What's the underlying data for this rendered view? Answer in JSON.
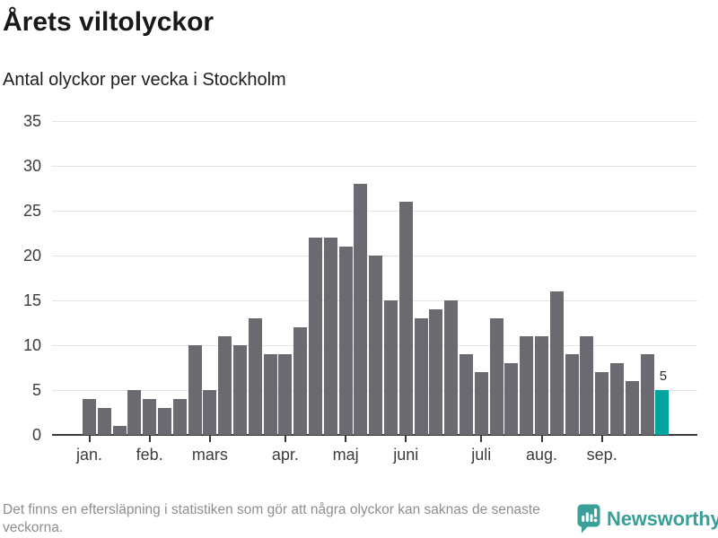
{
  "header": {
    "title": "Årets viltolyckor",
    "subtitle": "Antal olyckor per vecka i Stockholm"
  },
  "chart_data": {
    "type": "bar",
    "title": "Årets viltolyckor",
    "subtitle": "Antal olyckor per vecka i Stockholm",
    "ylabel": "",
    "xlabel": "",
    "values": [
      4,
      3,
      1,
      5,
      4,
      3,
      4,
      10,
      5,
      11,
      10,
      13,
      9,
      9,
      12,
      22,
      22,
      21,
      28,
      20,
      15,
      26,
      13,
      14,
      15,
      9,
      7,
      13,
      8,
      11,
      11,
      16,
      9,
      11,
      7,
      8,
      6,
      9,
      5
    ],
    "highlight_index": 38,
    "highlight_label": "5",
    "month_ticks": [
      {
        "label": "jan.",
        "index": 0
      },
      {
        "label": "feb.",
        "index": 4
      },
      {
        "label": "mars",
        "index": 8
      },
      {
        "label": "apr.",
        "index": 13
      },
      {
        "label": "maj",
        "index": 17
      },
      {
        "label": "juni",
        "index": 21
      },
      {
        "label": "juli",
        "index": 26
      },
      {
        "label": "aug.",
        "index": 30
      },
      {
        "label": "sep.",
        "index": 34
      }
    ],
    "y_ticks": [
      0,
      5,
      10,
      15,
      20,
      25,
      30,
      35
    ],
    "ylim": [
      0,
      35
    ],
    "grid": true,
    "legend": "none",
    "bar_color": "#6a6a70",
    "highlight_color": "#00a49c"
  },
  "footer": {
    "note": "Det finns en eftersläpning i statistiken som gör att några olyckor kan saknas de senaste veckorna.",
    "brand": "Newsworthy"
  },
  "icons": {
    "logo": "newsworthy-speech-bubble-chart-icon"
  },
  "colors": {
    "brand_teal": "#3a9e99",
    "highlight_teal": "#00a49c",
    "bar_gray": "#6a6a70"
  }
}
